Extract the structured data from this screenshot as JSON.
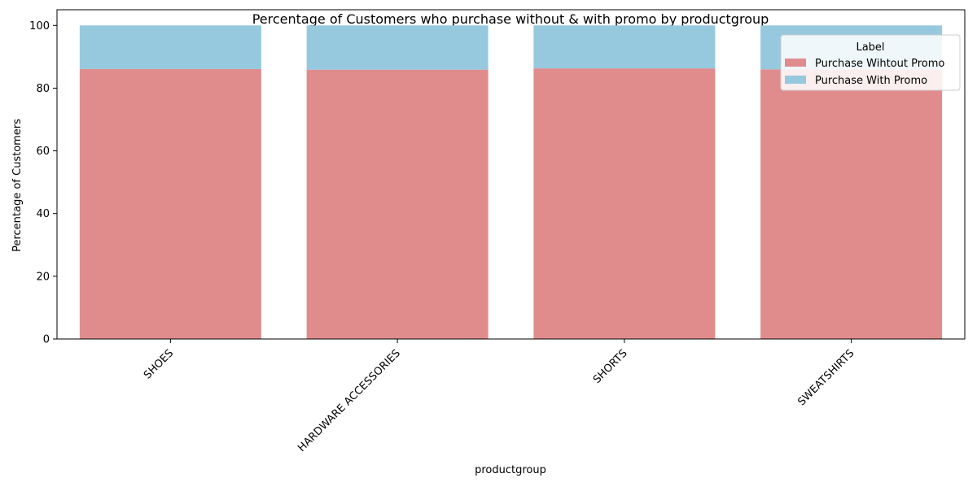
{
  "chart_data": {
    "type": "bar",
    "stacked": true,
    "title": "Percentage of Customers who purchase without & with promo by productgroup",
    "xlabel": "productgroup",
    "ylabel": "Percentage of Customers",
    "categories": [
      "SHOES",
      "HARDWARE ACCESSORIES",
      "SHORTS",
      "SWEATSHIRTS"
    ],
    "ylim": [
      0,
      105
    ],
    "yticks": [
      0,
      20,
      40,
      60,
      80,
      100
    ],
    "grid": false,
    "legend": {
      "title": "Label",
      "placement": "top-right"
    },
    "series": [
      {
        "name": "Purchase Wihtout Promo",
        "color": "#e08c8d",
        "values": [
          86.1,
          85.9,
          86.3,
          86.0
        ]
      },
      {
        "name": "Purchase With Promo",
        "color": "#96c9de",
        "values": [
          13.9,
          14.1,
          13.7,
          14.0
        ]
      }
    ]
  }
}
